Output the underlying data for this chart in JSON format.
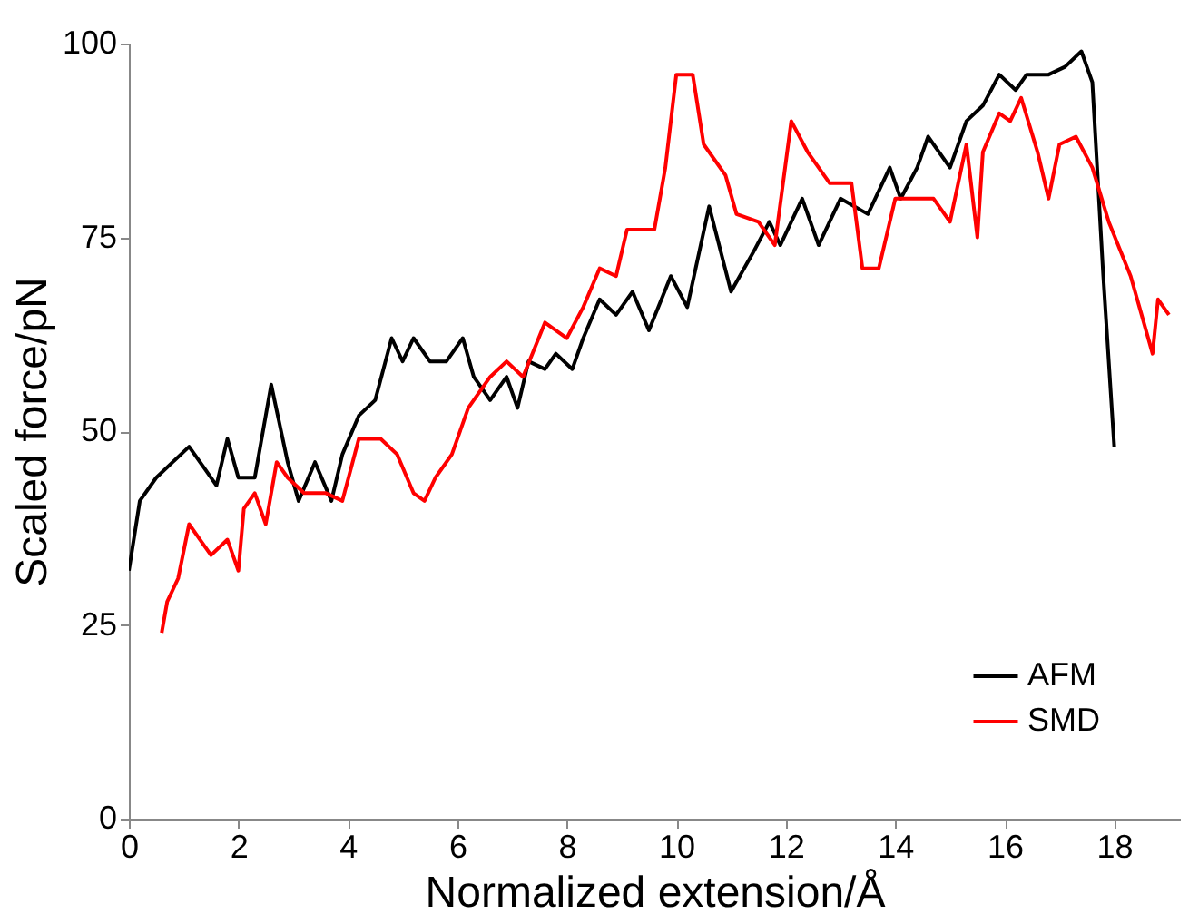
{
  "chart_data": {
    "type": "line",
    "xlabel": "Normalized extension/Å",
    "ylabel": "Scaled force/pN",
    "xlim": [
      0,
      19.2
    ],
    "xticks": [
      0,
      2,
      4,
      6,
      8,
      10,
      12,
      14,
      16,
      18
    ],
    "ylim": [
      0,
      100
    ],
    "yticks": [
      0,
      25,
      50,
      75,
      100
    ],
    "grid": false,
    "legend": "bottom right",
    "line_style": "solid",
    "marker": "none",
    "series": [
      {
        "name": "AFM",
        "color": "#000000",
        "x": [
          0,
          0.2,
          0.5,
          0.8,
          1.1,
          1.4,
          1.6,
          1.8,
          2.0,
          2.3,
          2.6,
          2.9,
          3.1,
          3.4,
          3.7,
          3.9,
          4.2,
          4.5,
          4.8,
          5.0,
          5.2,
          5.5,
          5.8,
          6.1,
          6.3,
          6.6,
          6.9,
          7.1,
          7.3,
          7.6,
          7.8,
          8.1,
          8.3,
          8.6,
          8.9,
          9.2,
          9.5,
          9.9,
          10.2,
          10.6,
          11.0,
          11.4,
          11.7,
          11.9,
          12.3,
          12.6,
          13.0,
          13.5,
          13.9,
          14.1,
          14.4,
          14.6,
          15.0,
          15.3,
          15.6,
          15.9,
          16.2,
          16.4,
          16.8,
          17.1,
          17.4,
          17.6,
          17.8,
          18.0
        ],
        "values": [
          32,
          41,
          44,
          46,
          48,
          45,
          43,
          49,
          44,
          44,
          56,
          46,
          41,
          46,
          41,
          47,
          52,
          54,
          62,
          59,
          62,
          59,
          59,
          62,
          57,
          54,
          57,
          53,
          59,
          58,
          60,
          58,
          62,
          67,
          65,
          68,
          63,
          70,
          66,
          79,
          68,
          73,
          77,
          74,
          80,
          74,
          80,
          78,
          84,
          80,
          84,
          88,
          84,
          90,
          92,
          96,
          94,
          96,
          96,
          97,
          99,
          95,
          70,
          48
        ]
      },
      {
        "name": "SMD",
        "color": "#ff0000",
        "x": [
          0.6,
          0.7,
          0.9,
          1.1,
          1.3,
          1.5,
          1.8,
          2.0,
          2.1,
          2.3,
          2.5,
          2.7,
          2.9,
          3.2,
          3.6,
          3.9,
          4.2,
          4.6,
          4.9,
          5.2,
          5.4,
          5.6,
          5.9,
          6.2,
          6.6,
          6.9,
          7.2,
          7.6,
          8.0,
          8.3,
          8.6,
          8.9,
          9.1,
          9.4,
          9.6,
          9.8,
          10.0,
          10.3,
          10.5,
          10.9,
          11.1,
          11.5,
          11.8,
          12.1,
          12.4,
          12.8,
          13.2,
          13.4,
          13.7,
          14.0,
          14.4,
          14.7,
          15.0,
          15.3,
          15.5,
          15.6,
          15.9,
          16.1,
          16.3,
          16.6,
          16.8,
          17.0,
          17.3,
          17.6,
          17.9,
          18.3,
          18.5,
          18.7,
          18.8,
          19.0
        ],
        "values": [
          24,
          28,
          31,
          38,
          36,
          34,
          36,
          32,
          40,
          42,
          38,
          46,
          44,
          42,
          42,
          41,
          49,
          49,
          47,
          42,
          41,
          44,
          47,
          53,
          57,
          59,
          57,
          64,
          62,
          66,
          71,
          70,
          76,
          76,
          76,
          84,
          96,
          96,
          87,
          83,
          78,
          77,
          74,
          90,
          86,
          82,
          82,
          71,
          71,
          80,
          80,
          80,
          77,
          87,
          75,
          86,
          91,
          90,
          93,
          86,
          80,
          87,
          88,
          84,
          77,
          70,
          65,
          60,
          67,
          65
        ]
      }
    ]
  }
}
